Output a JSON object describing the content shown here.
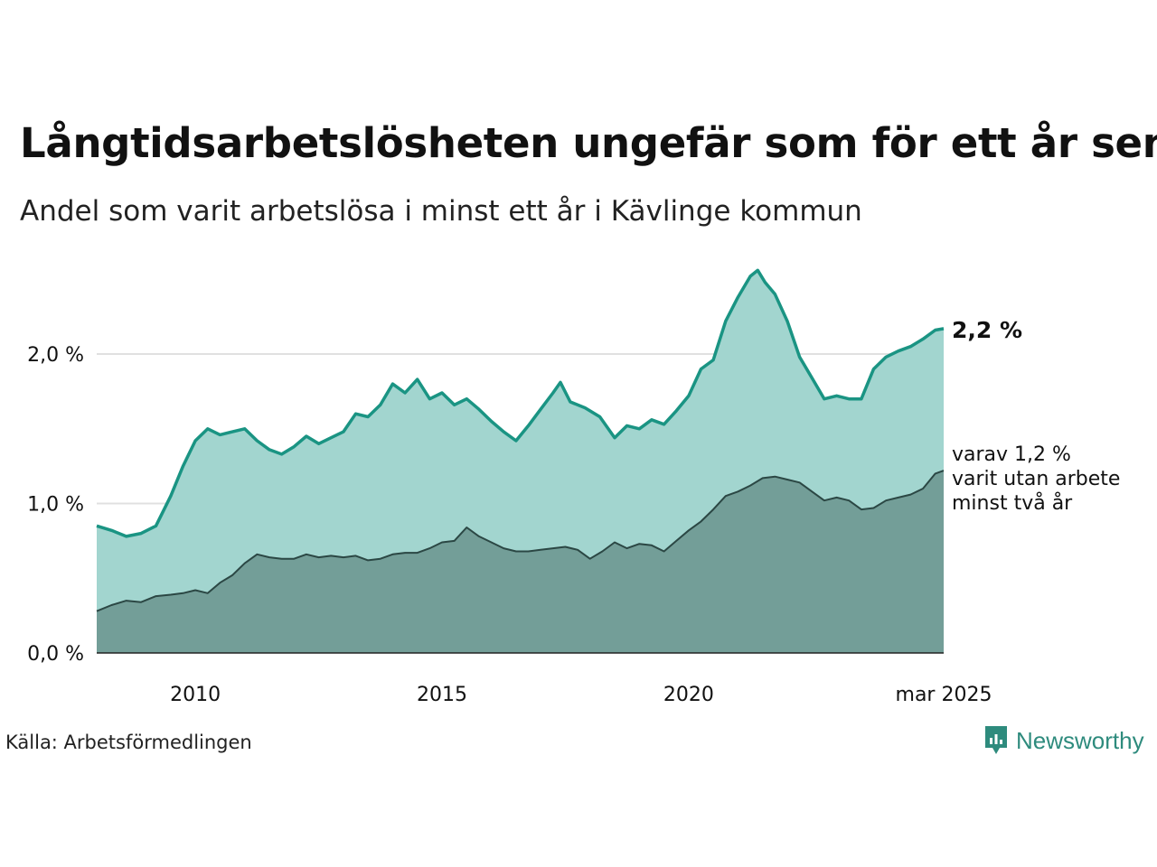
{
  "title": "Långtidsarbetslösheten ungefär som för ett år sen",
  "subtitle": "Andel som varit arbetslösa i minst ett år i Kävlinge kommun",
  "source": "Källa: Arbetsförmedlingen",
  "brand": "Newsworthy",
  "colors": {
    "area_main": "#a2d5cf",
    "line_main": "#1a9483",
    "area_sub": "#739e98",
    "line_sub": "#2b4744",
    "grid": "#e0e0e0",
    "brand": "#2e8b7d"
  },
  "chart_data": {
    "type": "area",
    "x_ticks": [
      "2010",
      "2015",
      "2020",
      "mar 2025"
    ],
    "y_ticks": [
      "0,0 %",
      "1,0 %",
      "2,0 %"
    ],
    "ylim": [
      0,
      2.6
    ],
    "grid": true,
    "end_label": "2,2 %",
    "sub_label_lines": [
      "varav 1,2 %",
      "varit utan arbete",
      "minst två år"
    ],
    "series": [
      {
        "values": [
          [
            2008.0,
            0.85
          ],
          [
            2008.3,
            0.82
          ],
          [
            2008.6,
            0.78
          ],
          [
            2008.9,
            0.8
          ],
          [
            2009.2,
            0.85
          ],
          [
            2009.5,
            1.05
          ],
          [
            2009.75,
            1.25
          ],
          [
            2010.0,
            1.42
          ],
          [
            2010.25,
            1.5
          ],
          [
            2010.5,
            1.46
          ],
          [
            2010.75,
            1.48
          ],
          [
            2011.0,
            1.5
          ],
          [
            2011.25,
            1.42
          ],
          [
            2011.5,
            1.36
          ],
          [
            2011.75,
            1.33
          ],
          [
            2012.0,
            1.38
          ],
          [
            2012.25,
            1.45
          ],
          [
            2012.5,
            1.4
          ],
          [
            2012.75,
            1.44
          ],
          [
            2013.0,
            1.48
          ],
          [
            2013.25,
            1.6
          ],
          [
            2013.5,
            1.58
          ],
          [
            2013.75,
            1.66
          ],
          [
            2014.0,
            1.8
          ],
          [
            2014.25,
            1.74
          ],
          [
            2014.5,
            1.83
          ],
          [
            2014.75,
            1.7
          ],
          [
            2015.0,
            1.74
          ],
          [
            2015.25,
            1.66
          ],
          [
            2015.5,
            1.7
          ],
          [
            2015.75,
            1.63
          ],
          [
            2016.0,
            1.55
          ],
          [
            2016.25,
            1.48
          ],
          [
            2016.5,
            1.42
          ],
          [
            2016.75,
            1.52
          ],
          [
            2017.0,
            1.63
          ],
          [
            2017.25,
            1.74
          ],
          [
            2017.4,
            1.81
          ],
          [
            2017.6,
            1.68
          ],
          [
            2017.9,
            1.64
          ],
          [
            2018.2,
            1.58
          ],
          [
            2018.5,
            1.44
          ],
          [
            2018.75,
            1.52
          ],
          [
            2019.0,
            1.5
          ],
          [
            2019.25,
            1.56
          ],
          [
            2019.5,
            1.53
          ],
          [
            2019.75,
            1.62
          ],
          [
            2020.0,
            1.72
          ],
          [
            2020.25,
            1.9
          ],
          [
            2020.5,
            1.96
          ],
          [
            2020.75,
            2.22
          ],
          [
            2021.0,
            2.38
          ],
          [
            2021.25,
            2.52
          ],
          [
            2021.4,
            2.56
          ],
          [
            2021.55,
            2.48
          ],
          [
            2021.75,
            2.4
          ],
          [
            2022.0,
            2.22
          ],
          [
            2022.25,
            1.98
          ],
          [
            2022.5,
            1.84
          ],
          [
            2022.75,
            1.7
          ],
          [
            2023.0,
            1.72
          ],
          [
            2023.25,
            1.7
          ],
          [
            2023.5,
            1.7
          ],
          [
            2023.75,
            1.9
          ],
          [
            2024.0,
            1.98
          ],
          [
            2024.25,
            2.02
          ],
          [
            2024.5,
            2.05
          ],
          [
            2024.75,
            2.1
          ],
          [
            2025.0,
            2.16
          ],
          [
            2025.17,
            2.17
          ]
        ]
      },
      {
        "values": [
          [
            2008.0,
            0.28
          ],
          [
            2008.3,
            0.32
          ],
          [
            2008.6,
            0.35
          ],
          [
            2008.9,
            0.34
          ],
          [
            2009.2,
            0.38
          ],
          [
            2009.5,
            0.39
          ],
          [
            2009.75,
            0.4
          ],
          [
            2010.0,
            0.42
          ],
          [
            2010.25,
            0.4
          ],
          [
            2010.5,
            0.47
          ],
          [
            2010.75,
            0.52
          ],
          [
            2011.0,
            0.6
          ],
          [
            2011.25,
            0.66
          ],
          [
            2011.5,
            0.64
          ],
          [
            2011.75,
            0.63
          ],
          [
            2012.0,
            0.63
          ],
          [
            2012.25,
            0.66
          ],
          [
            2012.5,
            0.64
          ],
          [
            2012.75,
            0.65
          ],
          [
            2013.0,
            0.64
          ],
          [
            2013.25,
            0.65
          ],
          [
            2013.5,
            0.62
          ],
          [
            2013.75,
            0.63
          ],
          [
            2014.0,
            0.66
          ],
          [
            2014.25,
            0.67
          ],
          [
            2014.5,
            0.67
          ],
          [
            2014.75,
            0.7
          ],
          [
            2015.0,
            0.74
          ],
          [
            2015.25,
            0.75
          ],
          [
            2015.5,
            0.84
          ],
          [
            2015.75,
            0.78
          ],
          [
            2016.0,
            0.74
          ],
          [
            2016.25,
            0.7
          ],
          [
            2016.5,
            0.68
          ],
          [
            2016.75,
            0.68
          ],
          [
            2017.0,
            0.69
          ],
          [
            2017.25,
            0.7
          ],
          [
            2017.5,
            0.71
          ],
          [
            2017.75,
            0.69
          ],
          [
            2018.0,
            0.63
          ],
          [
            2018.25,
            0.68
          ],
          [
            2018.5,
            0.74
          ],
          [
            2018.75,
            0.7
          ],
          [
            2019.0,
            0.73
          ],
          [
            2019.25,
            0.72
          ],
          [
            2019.5,
            0.68
          ],
          [
            2019.75,
            0.75
          ],
          [
            2020.0,
            0.82
          ],
          [
            2020.25,
            0.88
          ],
          [
            2020.5,
            0.96
          ],
          [
            2020.75,
            1.05
          ],
          [
            2021.0,
            1.08
          ],
          [
            2021.25,
            1.12
          ],
          [
            2021.5,
            1.17
          ],
          [
            2021.75,
            1.18
          ],
          [
            2022.0,
            1.16
          ],
          [
            2022.25,
            1.14
          ],
          [
            2022.5,
            1.08
          ],
          [
            2022.75,
            1.02
          ],
          [
            2023.0,
            1.04
          ],
          [
            2023.25,
            1.02
          ],
          [
            2023.5,
            0.96
          ],
          [
            2023.75,
            0.97
          ],
          [
            2024.0,
            1.02
          ],
          [
            2024.25,
            1.04
          ],
          [
            2024.5,
            1.06
          ],
          [
            2024.75,
            1.1
          ],
          [
            2025.0,
            1.2
          ],
          [
            2025.17,
            1.22
          ]
        ]
      }
    ]
  }
}
